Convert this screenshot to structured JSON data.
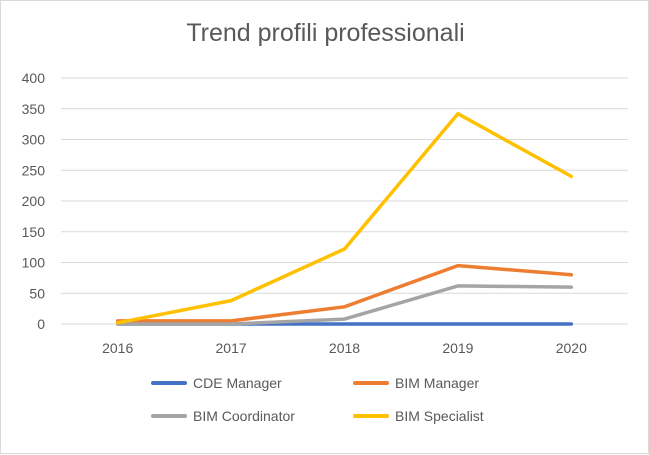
{
  "chart_data": {
    "type": "line",
    "title": "Trend profili professionali",
    "categories": [
      "2016",
      "2017",
      "2018",
      "2019",
      "2020"
    ],
    "ylim": [
      0,
      400
    ],
    "yticks": [
      0,
      50,
      100,
      150,
      200,
      250,
      300,
      350,
      400
    ],
    "grid": true,
    "legend": "bottom",
    "series": [
      {
        "name": "CDE Manager",
        "color": "#4472C4",
        "values": [
          0,
          0,
          0,
          0,
          0
        ]
      },
      {
        "name": "BIM Manager",
        "color": "#ED7D31",
        "values": [
          5,
          5,
          28,
          95,
          80
        ]
      },
      {
        "name": "BIM Coordinator",
        "color": "#A5A5A5",
        "values": [
          0,
          0,
          8,
          62,
          60
        ]
      },
      {
        "name": "BIM Specialist",
        "color": "#FFC000",
        "values": [
          2,
          38,
          122,
          342,
          240
        ]
      }
    ]
  }
}
